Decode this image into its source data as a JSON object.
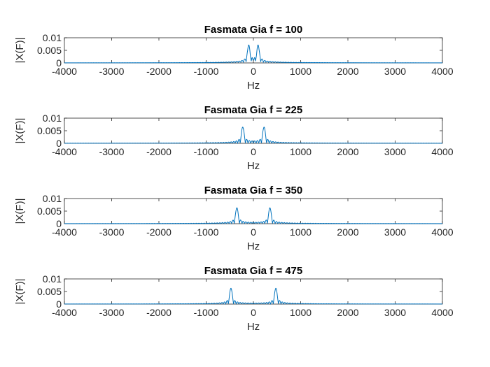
{
  "chart_data": [
    {
      "type": "line",
      "title": "Fasmata Gia f = 100",
      "xlabel": "Hz",
      "ylabel": "|X(F)|",
      "xlim": [
        -4000,
        4000
      ],
      "ylim": [
        0,
        0.01
      ],
      "xticks": [
        "-4000",
        "-3000",
        "-2000",
        "-1000",
        "0",
        "1000",
        "2000",
        "3000",
        "4000"
      ],
      "yticks": [
        "0",
        "0.005",
        "0.01"
      ],
      "grid": false,
      "series": [
        {
          "peak_hz": 100,
          "peak_magnitude": 0.0066,
          "color": "#0072BD"
        }
      ]
    },
    {
      "type": "line",
      "title": "Fasmata Gia f = 225",
      "xlabel": "Hz",
      "ylabel": "|X(F)|",
      "xlim": [
        -4000,
        4000
      ],
      "ylim": [
        0,
        0.01
      ],
      "xticks": [
        "-4000",
        "-3000",
        "-2000",
        "-1000",
        "0",
        "1000",
        "2000",
        "3000",
        "4000"
      ],
      "yticks": [
        "0",
        "0.005",
        "0.01"
      ],
      "grid": false,
      "series": [
        {
          "peak_hz": 225,
          "peak_magnitude": 0.0063,
          "color": "#0072BD"
        }
      ]
    },
    {
      "type": "line",
      "title": "Fasmata Gia f = 350",
      "xlabel": "Hz",
      "ylabel": "|X(F)|",
      "xlim": [
        -4000,
        4000
      ],
      "ylim": [
        0,
        0.01
      ],
      "xticks": [
        "-4000",
        "-3000",
        "-2000",
        "-1000",
        "0",
        "1000",
        "2000",
        "3000",
        "4000"
      ],
      "yticks": [
        "0",
        "0.005",
        "0.01"
      ],
      "grid": false,
      "series": [
        {
          "peak_hz": 350,
          "peak_magnitude": 0.0062,
          "color": "#0072BD"
        }
      ]
    },
    {
      "type": "line",
      "title": "Fasmata Gia f = 475",
      "xlabel": "Hz",
      "ylabel": "|X(F)|",
      "xlim": [
        -4000,
        4000
      ],
      "ylim": [
        0,
        0.01
      ],
      "xticks": [
        "-4000",
        "-3000",
        "-2000",
        "-1000",
        "0",
        "1000",
        "2000",
        "3000",
        "4000"
      ],
      "yticks": [
        "0",
        "0.005",
        "0.01"
      ],
      "grid": false,
      "series": [
        {
          "peak_hz": 475,
          "peak_magnitude": 0.0062,
          "color": "#0072BD"
        }
      ]
    }
  ]
}
